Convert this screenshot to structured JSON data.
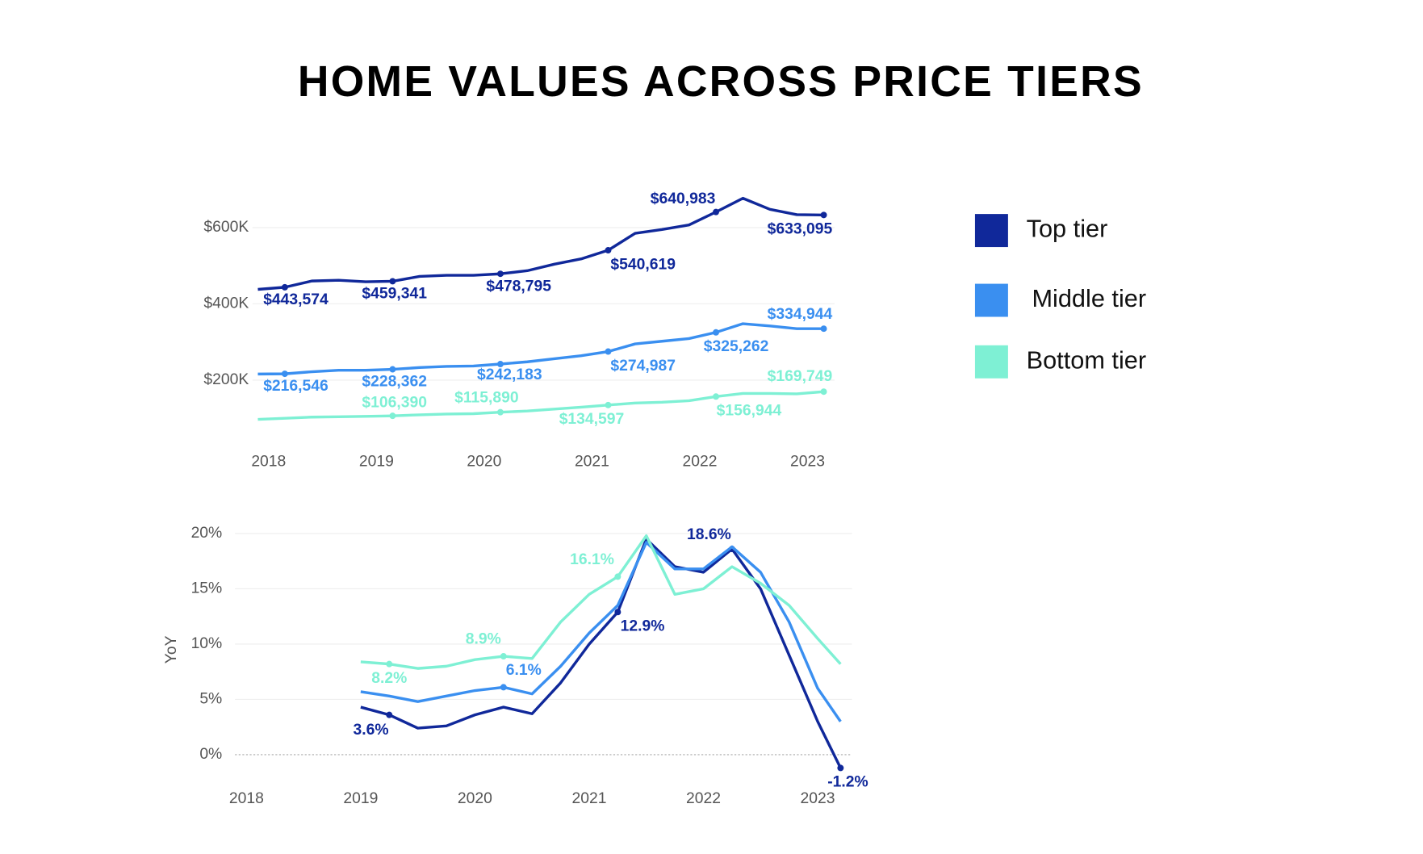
{
  "title": "HOME VALUES ACROSS PRICE TIERS",
  "legend": "right",
  "chart_data": [
    {
      "type": "line",
      "x": [
        2017.9,
        2018.15,
        2018.4,
        2018.65,
        2018.9,
        2019.15,
        2019.4,
        2019.65,
        2019.9,
        2020.15,
        2020.4,
        2020.65,
        2020.9,
        2021.15,
        2021.4,
        2021.65,
        2021.9,
        2022.15,
        2022.4,
        2022.65,
        2022.9,
        2023.15
      ],
      "xlim": [
        2017.85,
        2023.25
      ],
      "xticks": [
        2018,
        2019,
        2020,
        2021,
        2022,
        2023
      ],
      "ylim": [
        0,
        720000
      ],
      "yticks": [
        {
          "value": 200000,
          "label": "$200K"
        },
        {
          "value": 400000,
          "label": "$400K"
        },
        {
          "value": 600000,
          "label": "$600K"
        }
      ],
      "grid": true,
      "series": [
        {
          "name": "Top tier",
          "color": "#10289a",
          "values": [
            438000,
            443574,
            460000,
            462000,
            458000,
            459341,
            472000,
            475000,
            475000,
            478795,
            487000,
            504000,
            518000,
            540619,
            585000,
            595000,
            607000,
            640983,
            677000,
            648000,
            634000,
            633095
          ],
          "value_labels": [
            null,
            "$443,574",
            null,
            null,
            null,
            "$459,341",
            null,
            null,
            null,
            "$478,795",
            null,
            null,
            null,
            "$540,619",
            null,
            null,
            null,
            "$640,983",
            null,
            null,
            null,
            "$633,095"
          ]
        },
        {
          "name": "Middle tier",
          "color": "#3a8ff0",
          "values": [
            216000,
            216546,
            222000,
            226000,
            226000,
            228362,
            233000,
            236000,
            237000,
            242183,
            248000,
            256000,
            264000,
            274987,
            295000,
            302000,
            309000,
            325262,
            348000,
            342000,
            335000,
            334944
          ],
          "value_labels": [
            null,
            "$216,546",
            null,
            null,
            null,
            "$228,362",
            null,
            null,
            null,
            "$242,183",
            null,
            null,
            null,
            "$274,987",
            null,
            null,
            null,
            "$325,262",
            null,
            null,
            null,
            "$334,944"
          ]
        },
        {
          "name": "Bottom tier",
          "color": "#7ef0d4",
          "values": [
            97000,
            100000,
            103000,
            104000,
            105000,
            106390,
            109000,
            111000,
            112000,
            115890,
            119000,
            124000,
            129000,
            134597,
            140000,
            142000,
            146000,
            156944,
            165000,
            165000,
            164000,
            169749
          ],
          "value_labels": [
            null,
            null,
            null,
            null,
            null,
            "$106,390",
            null,
            null,
            null,
            "$115,890",
            null,
            null,
            null,
            "$134,597",
            null,
            null,
            null,
            "$156,944",
            null,
            null,
            null,
            "$169,749"
          ]
        }
      ]
    },
    {
      "type": "line",
      "y_label": "YoY",
      "x": [
        2019.0,
        2019.25,
        2019.5,
        2019.75,
        2020.0,
        2020.25,
        2020.5,
        2020.75,
        2021.0,
        2021.25,
        2021.5,
        2021.75,
        2022.0,
        2022.25,
        2022.5,
        2022.75,
        2023.0,
        2023.2
      ],
      "xlim": [
        2017.9,
        2023.3
      ],
      "xticks": [
        2018,
        2019,
        2020,
        2021,
        2022,
        2023
      ],
      "ylim": [
        -2,
        21
      ],
      "yticks": [
        {
          "value": 0,
          "label": "0%"
        },
        {
          "value": 5,
          "label": "5%"
        },
        {
          "value": 10,
          "label": "10%"
        },
        {
          "value": 15,
          "label": "15%"
        },
        {
          "value": 20,
          "label": "20%"
        }
      ],
      "grid": true,
      "series": [
        {
          "color": "#10289a",
          "values": [
            4.3,
            3.6,
            2.4,
            2.6,
            3.6,
            4.3,
            3.7,
            6.5,
            10.0,
            12.9,
            19.5,
            17.0,
            16.5,
            18.6,
            15.0,
            9.0,
            3.0,
            -1.2
          ],
          "value_labels": [
            null,
            "3.6%",
            null,
            null,
            null,
            null,
            null,
            null,
            null,
            "12.9%",
            null,
            null,
            null,
            "18.6%",
            null,
            null,
            null,
            "-1.2%"
          ]
        },
        {
          "color": "#3a8ff0",
          "values": [
            5.7,
            5.3,
            4.8,
            5.3,
            5.8,
            6.1,
            5.5,
            8.0,
            11.0,
            13.5,
            19.2,
            16.8,
            16.8,
            18.8,
            16.5,
            12.0,
            6.0,
            3.0
          ],
          "value_labels": [
            null,
            null,
            null,
            null,
            null,
            "6.1%",
            null,
            null,
            null,
            null,
            null,
            null,
            null,
            null,
            null,
            null,
            null,
            null
          ]
        },
        {
          "color": "#7ef0d4",
          "values": [
            8.4,
            8.2,
            7.8,
            8.0,
            8.6,
            8.9,
            8.7,
            12.0,
            14.5,
            16.1,
            19.8,
            14.5,
            15.0,
            17.0,
            15.5,
            13.5,
            10.5,
            8.2
          ],
          "value_labels": [
            null,
            "8.2%",
            null,
            null,
            null,
            "8.9%",
            null,
            null,
            null,
            "16.1%",
            null,
            null,
            null,
            null,
            null,
            null,
            null,
            null
          ]
        }
      ]
    }
  ]
}
